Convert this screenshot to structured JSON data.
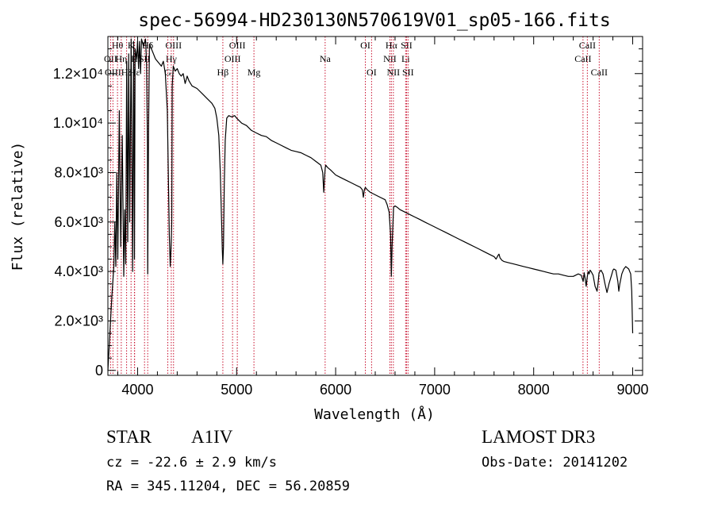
{
  "chart_data": {
    "type": "line",
    "title": "spec-56994-HD230130N570619V01_sp05-166.fits",
    "xlabel": "Wavelength (Å)",
    "ylabel": "Flux (relative)",
    "xlim": [
      3700,
      9100
    ],
    "ylim": [
      -200,
      13500
    ],
    "x_ticks": [
      {
        "value": 4000,
        "label": "4000"
      },
      {
        "value": 5000,
        "label": "5000"
      },
      {
        "value": 6000,
        "label": "6000"
      },
      {
        "value": 7000,
        "label": "7000"
      },
      {
        "value": 8000,
        "label": "8000"
      },
      {
        "value": 9000,
        "label": "9000"
      }
    ],
    "y_ticks": [
      {
        "value": 0,
        "label": "0"
      },
      {
        "value": 2000,
        "label": "2.0×10³"
      },
      {
        "value": 4000,
        "label": "4.0×10³"
      },
      {
        "value": 6000,
        "label": "6.0×10³"
      },
      {
        "value": 8000,
        "label": "8.0×10³"
      },
      {
        "value": 10000,
        "label": "1.0×10⁴"
      },
      {
        "value": 12000,
        "label": "1.2×10⁴"
      }
    ],
    "spectrum": {
      "name": "flux",
      "x": [
        3700,
        3720,
        3740,
        3760,
        3770,
        3780,
        3790,
        3800,
        3815,
        3830,
        3845,
        3860,
        3870,
        3880,
        3890,
        3900,
        3910,
        3920,
        3935,
        3950,
        3960,
        3968,
        3975,
        3990,
        4000,
        4010,
        4020,
        4030,
        4040,
        4060,
        4080,
        4090,
        4100,
        4102,
        4110,
        4120,
        4140,
        4160,
        4180,
        4200,
        4220,
        4240,
        4260,
        4280,
        4300,
        4320,
        4330,
        4340,
        4345,
        4350,
        4360,
        4380,
        4400,
        4420,
        4440,
        4460,
        4480,
        4500,
        4520,
        4550,
        4600,
        4650,
        4700,
        4750,
        4780,
        4800,
        4820,
        4835,
        4850,
        4855,
        4861,
        4867,
        4875,
        4885,
        4900,
        4920,
        4950,
        4980,
        5000,
        5050,
        5100,
        5150,
        5200,
        5250,
        5300,
        5350,
        5400,
        5450,
        5500,
        5550,
        5600,
        5650,
        5700,
        5750,
        5800,
        5850,
        5870,
        5880,
        5890,
        5895,
        5900,
        5910,
        5920,
        5950,
        6000,
        6050,
        6100,
        6150,
        6200,
        6250,
        6270,
        6280,
        6290,
        6300,
        6310,
        6320,
        6350,
        6400,
        6450,
        6500,
        6520,
        6540,
        6555,
        6563,
        6570,
        6585,
        6600,
        6620,
        6650,
        6700,
        6750,
        6800,
        6850,
        6900,
        6950,
        7000,
        7050,
        7100,
        7150,
        7200,
        7250,
        7300,
        7350,
        7400,
        7450,
        7500,
        7550,
        7600,
        7620,
        7640,
        7650,
        7660,
        7670,
        7680,
        7700,
        7750,
        7800,
        7850,
        7900,
        7950,
        8000,
        8050,
        8100,
        8150,
        8200,
        8250,
        8300,
        8350,
        8400,
        8450,
        8480,
        8500,
        8510,
        8520,
        8530,
        8540,
        8550,
        8560,
        8570,
        8580,
        8600,
        8620,
        8640,
        8650,
        8660,
        8670,
        8680,
        8700,
        8720,
        8740,
        8760,
        8790,
        8800,
        8810,
        8830,
        8850,
        8860,
        8870,
        8890,
        8910,
        8930,
        8960,
        8980,
        8990,
        9000
      ],
      "y": [
        0,
        1500,
        3000,
        4200,
        6000,
        4200,
        8000,
        4500,
        10500,
        5000,
        9500,
        3800,
        6500,
        4300,
        12500,
        5200,
        12800,
        6000,
        13400,
        4000,
        13300,
        4500,
        13000,
        12600,
        13300,
        12200,
        13300,
        12000,
        13400,
        13100,
        13400,
        12500,
        9000,
        3900,
        9500,
        13200,
        13000,
        12800,
        12600,
        12500,
        12400,
        12300,
        12500,
        12000,
        10500,
        5500,
        4200,
        5200,
        6000,
        11500,
        12300,
        12100,
        12200,
        12000,
        11900,
        12000,
        11600,
        11900,
        11700,
        11500,
        11400,
        11200,
        11000,
        10800,
        10600,
        10200,
        9500,
        8000,
        5800,
        4900,
        4300,
        5000,
        7500,
        9300,
        10200,
        10300,
        10250,
        10300,
        10200,
        10000,
        9900,
        9700,
        9600,
        9500,
        9450,
        9300,
        9200,
        9100,
        9000,
        8900,
        8850,
        8800,
        8700,
        8600,
        8450,
        8300,
        8000,
        7200,
        7900,
        8200,
        8300,
        8250,
        8200,
        8100,
        7900,
        7800,
        7700,
        7600,
        7500,
        7400,
        7300,
        7000,
        7300,
        7400,
        7350,
        7300,
        7200,
        7100,
        7000,
        6900,
        6700,
        6400,
        5500,
        3800,
        5000,
        6600,
        6650,
        6600,
        6500,
        6400,
        6300,
        6200,
        6100,
        6000,
        5900,
        5800,
        5700,
        5600,
        5500,
        5400,
        5300,
        5200,
        5100,
        5000,
        4900,
        4800,
        4700,
        4600,
        4500,
        4650,
        4700,
        4550,
        4500,
        4450,
        4400,
        4350,
        4300,
        4250,
        4200,
        4150,
        4100,
        4050,
        4000,
        3950,
        3900,
        3900,
        3850,
        3800,
        3800,
        3900,
        3850,
        3600,
        3950,
        3700,
        3400,
        3750,
        4000,
        3900,
        4050,
        4000,
        3850,
        3400,
        3200,
        3500,
        3950,
        4000,
        4050,
        3900,
        3500,
        3150,
        3500,
        3900,
        4050,
        4100,
        4050,
        3600,
        3200,
        3500,
        3900,
        4100,
        4200,
        4100,
        3900,
        3200,
        1500
      ]
    },
    "lines": [
      {
        "name": "Hθ",
        "wavelength": 3797,
        "row": 1
      },
      {
        "name": "OII",
        "wavelength": 3727,
        "row": 2
      },
      {
        "name": "OIII",
        "wavelength": 3751,
        "row": 3
      },
      {
        "name": "Hη",
        "wavelength": 3835,
        "row": 2
      },
      {
        "name": "Hζ",
        "wavelength": 3889,
        "row": 3
      },
      {
        "name": "K",
        "wavelength": 3934,
        "row": 1
      },
      {
        "name": "H",
        "wavelength": 3968,
        "row": 2
      },
      {
        "name": "Hε",
        "wavelength": 3970,
        "row": 3
      },
      {
        "name": "SII",
        "wavelength": 4070,
        "row": 2
      },
      {
        "name": "Hδ",
        "wavelength": 4102,
        "row": 1
      },
      {
        "name": "Hγ",
        "wavelength": 4340,
        "row": 2
      },
      {
        "name": "OIII",
        "wavelength": 4363,
        "row": 1
      },
      {
        "name": "G",
        "wavelength": 4305,
        "row": 3
      },
      {
        "name": "Hβ",
        "wavelength": 4861,
        "row": 3
      },
      {
        "name": "OIII",
        "wavelength": 4959,
        "row": 2
      },
      {
        "name": "OIII",
        "wavelength": 5007,
        "row": 1
      },
      {
        "name": "Mg",
        "wavelength": 5175,
        "row": 3
      },
      {
        "name": "Na",
        "wavelength": 5894,
        "row": 2
      },
      {
        "name": "OI",
        "wavelength": 6300,
        "row": 1
      },
      {
        "name": "OI",
        "wavelength": 6363,
        "row": 3
      },
      {
        "name": "NII",
        "wavelength": 6548,
        "row": 2
      },
      {
        "name": "Hα",
        "wavelength": 6563,
        "row": 1
      },
      {
        "name": "NII",
        "wavelength": 6583,
        "row": 3
      },
      {
        "name": "Li",
        "wavelength": 6707,
        "row": 2
      },
      {
        "name": "SII",
        "wavelength": 6716,
        "row": 1
      },
      {
        "name": "SII",
        "wavelength": 6731,
        "row": 3
      },
      {
        "name": "CaII",
        "wavelength": 8498,
        "row": 2
      },
      {
        "name": "CaII",
        "wavelength": 8542,
        "row": 1
      },
      {
        "name": "CaII",
        "wavelength": 8662,
        "row": 3
      }
    ],
    "colors": {
      "line_marker": "#c8102e",
      "spectrum": "#000000",
      "axes": "#000000"
    }
  },
  "info": {
    "object_class": "STAR",
    "subclass": "A1IV",
    "survey": "LAMOST DR3",
    "redshift": "cz = -22.6 ± 2.9 km/s",
    "obs_date": "Obs-Date: 20141202",
    "coords": "RA = 345.11204, DEC =  56.20859"
  }
}
